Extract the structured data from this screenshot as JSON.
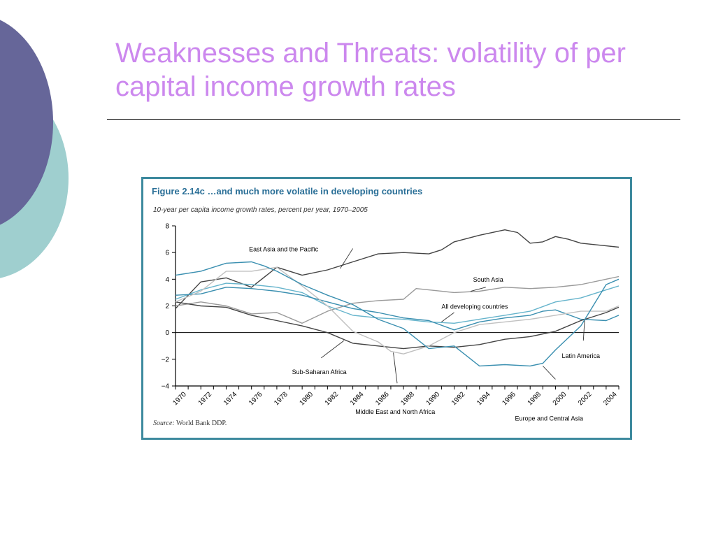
{
  "slide": {
    "title": "Weaknesses and Threats: volatility of per capital income growth rates"
  },
  "figure": {
    "title": "Figure 2.14c  …and much more volatile in developing countries",
    "subtitle": "10-year per capita income growth rates, percent per year, 1970–2005",
    "source_label": "Source:",
    "source_text": " World Bank DDP."
  },
  "colors": {
    "title": "#cc88ee",
    "figure_border": "#3d8a9e",
    "figure_title": "#2a6f97",
    "blue_series": "#3a8fb0",
    "dark_series": "#444444",
    "gray_series": "#9a9a9a",
    "light_series": "#c0c0c0",
    "teal_series": "#66b4cc"
  },
  "chart_data": {
    "type": "line",
    "title": "Figure 2.14c  …and much more volatile in developing countries",
    "subtitle": "10-year per capita income growth rates, percent per year, 1970–2005",
    "xlim": [
      1970,
      2005
    ],
    "ylim": [
      -4,
      8
    ],
    "yticks": [
      8,
      6,
      4,
      2,
      0,
      -2,
      -4
    ],
    "xticks": [
      1970,
      1972,
      1974,
      1976,
      1978,
      1980,
      1982,
      1984,
      1986,
      1988,
      1990,
      1992,
      1994,
      1996,
      1998,
      2000,
      2002,
      2004
    ],
    "zero_line": true,
    "series": [
      {
        "name": "East Asia and the Pacific",
        "color": "#444444",
        "x": [
          1970,
          1972,
          1974,
          1976,
          1978,
          1980,
          1982,
          1984,
          1986,
          1988,
          1990,
          1991,
          1992,
          1994,
          1996,
          1997,
          1998,
          1999,
          2000,
          2001,
          2002,
          2003,
          2004,
          2005
        ],
        "y": [
          1.8,
          3.8,
          4.1,
          3.4,
          4.9,
          4.3,
          4.7,
          5.3,
          5.9,
          6.0,
          5.9,
          6.2,
          6.8,
          7.3,
          7.7,
          7.5,
          6.7,
          6.8,
          7.2,
          7.0,
          6.7,
          6.6,
          6.5,
          6.4
        ]
      },
      {
        "name": "South Asia",
        "color": "#9a9a9a",
        "x": [
          1970,
          1972,
          1974,
          1976,
          1978,
          1980,
          1982,
          1984,
          1986,
          1988,
          1989,
          1990,
          1992,
          1994,
          1996,
          1998,
          2000,
          2002,
          2004,
          2005
        ],
        "y": [
          2.0,
          2.3,
          2.0,
          1.4,
          1.5,
          0.7,
          1.6,
          2.2,
          2.4,
          2.5,
          3.3,
          3.2,
          3.0,
          3.1,
          3.4,
          3.3,
          3.4,
          3.6,
          4.0,
          4.2
        ]
      },
      {
        "name": "All developing countries",
        "color": "#66b4cc",
        "x": [
          1970,
          1972,
          1974,
          1976,
          1978,
          1980,
          1982,
          1984,
          1986,
          1988,
          1990,
          1992,
          1994,
          1996,
          1998,
          2000,
          2002,
          2004,
          2005
        ],
        "y": [
          2.5,
          3.2,
          3.7,
          3.6,
          3.4,
          3.0,
          2.0,
          1.3,
          1.1,
          1.0,
          0.8,
          0.7,
          1.0,
          1.3,
          1.6,
          2.3,
          2.6,
          3.2,
          3.5
        ]
      },
      {
        "name": "Latin America",
        "color": "#3a8fb0",
        "x": [
          1970,
          1972,
          1974,
          1976,
          1978,
          1980,
          1982,
          1984,
          1986,
          1988,
          1990,
          1992,
          1994,
          1996,
          1998,
          1999,
          2000,
          2002,
          2004,
          2005
        ],
        "y": [
          2.8,
          2.9,
          3.4,
          3.3,
          3.1,
          2.8,
          2.3,
          1.8,
          1.5,
          1.1,
          0.9,
          0.2,
          0.8,
          1.1,
          1.3,
          1.6,
          1.7,
          1.0,
          0.9,
          1.3
        ]
      },
      {
        "name": "Sub-Saharan Africa",
        "color": "#444444",
        "x": [
          1970,
          1972,
          1974,
          1976,
          1978,
          1980,
          1982,
          1984,
          1986,
          1988,
          1990,
          1992,
          1994,
          1996,
          1998,
          2000,
          2002,
          2004,
          2005
        ],
        "y": [
          2.3,
          2.0,
          1.9,
          1.3,
          0.9,
          0.5,
          0.0,
          -0.8,
          -1.0,
          -1.2,
          -1.0,
          -1.1,
          -0.9,
          -0.5,
          -0.3,
          0.1,
          0.9,
          1.5,
          1.9
        ]
      },
      {
        "name": "Middle East and North Africa",
        "color": "#c0c0c0",
        "x": [
          1970,
          1972,
          1974,
          1976,
          1978,
          1980,
          1982,
          1984,
          1986,
          1987,
          1988,
          1990,
          1992,
          1994,
          1996,
          1998,
          2000,
          2002,
          2004,
          2005
        ],
        "y": [
          2.3,
          3.1,
          4.6,
          4.6,
          4.9,
          3.5,
          2.0,
          0.1,
          -0.7,
          -1.4,
          -1.6,
          -1.0,
          0.0,
          0.6,
          0.8,
          1.0,
          1.3,
          1.6,
          1.6,
          2.0
        ]
      },
      {
        "name": "Europe and Central Asia",
        "color": "#3a8fb0",
        "x": [
          1970,
          1972,
          1974,
          1976,
          1977,
          1978,
          1980,
          1982,
          1984,
          1986,
          1988,
          1990,
          1992,
          1994,
          1996,
          1998,
          1999,
          2000,
          2002,
          2004,
          2005
        ],
        "y": [
          4.3,
          4.6,
          5.2,
          5.3,
          5.0,
          4.6,
          3.6,
          2.8,
          2.1,
          1.0,
          0.3,
          -1.2,
          -1.0,
          -2.5,
          -2.4,
          -2.5,
          -2.3,
          -1.3,
          0.5,
          3.6,
          4.0
        ]
      }
    ],
    "labels": [
      {
        "text": "East Asia and the Pacific",
        "x": 1975.8,
        "y": 6.1,
        "anchor": "start",
        "ax": 1984.0,
        "ay": 6.3,
        "bx": 1983.0,
        "by": 4.8
      },
      {
        "text": "South Asia",
        "x": 1993.5,
        "y": 3.8,
        "anchor": "start",
        "ax": 1994.5,
        "ay": 3.4,
        "bx": 1993.3,
        "by": 3.1
      },
      {
        "text": "All developing countries",
        "x": 1991.0,
        "y": 1.8,
        "anchor": "start",
        "ax": 1992.0,
        "ay": 1.5,
        "bx": 1991.0,
        "by": 0.8
      },
      {
        "text": "Latin America",
        "x": 2000.5,
        "y": -1.9,
        "anchor": "start",
        "ax": 2002.2,
        "ay": -0.6,
        "bx": 2002.3,
        "by": 0.9
      },
      {
        "text": "Sub-Saharan Africa",
        "x": 1979.2,
        "y": -3.1,
        "anchor": "start",
        "ax": 1981.5,
        "ay": -1.9,
        "bx": 1983.3,
        "by": -0.6
      },
      {
        "text": "Middle East and North Africa",
        "x": 1984.2,
        "y": -6.1,
        "anchor": "start",
        "ax": 1987.5,
        "ay": -3.8,
        "bx": 1987.2,
        "by": -1.5
      },
      {
        "text": "Europe and Central Asia",
        "x": 1996.8,
        "y": -6.6,
        "anchor": "start",
        "ax": 2000.0,
        "ay": -3.5,
        "bx": 1999.0,
        "by": -2.5
      }
    ]
  }
}
